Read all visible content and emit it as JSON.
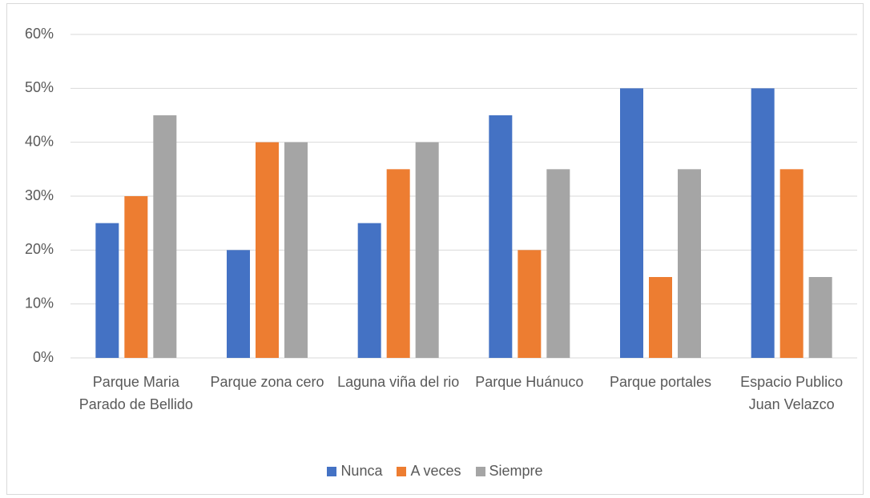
{
  "chart_data": {
    "type": "bar",
    "categories": [
      "Parque Maria Parado de Bellido",
      "Parque zona cero",
      "Laguna viña del rio",
      "Parque Huánuco",
      "Parque portales",
      "Espacio Publico Juan Velazco"
    ],
    "series": [
      {
        "name": "Nunca",
        "color": "#4472c4",
        "values": [
          25,
          20,
          25,
          45,
          50,
          50
        ]
      },
      {
        "name": "A veces",
        "color": "#ed7d31",
        "values": [
          30,
          40,
          35,
          20,
          15,
          35
        ]
      },
      {
        "name": "Siempre",
        "color": "#a5a5a5",
        "values": [
          45,
          40,
          40,
          35,
          35,
          15
        ]
      }
    ],
    "ylim": [
      0,
      60
    ],
    "yticks": [
      {
        "value": 0,
        "label": "0%"
      },
      {
        "value": 10,
        "label": "10%"
      },
      {
        "value": 20,
        "label": "20%"
      },
      {
        "value": 30,
        "label": "30%"
      },
      {
        "value": 40,
        "label": "40%"
      },
      {
        "value": 50,
        "label": "50%"
      },
      {
        "value": 60,
        "label": "60%"
      }
    ],
    "grid": true,
    "legend": "bottom"
  }
}
